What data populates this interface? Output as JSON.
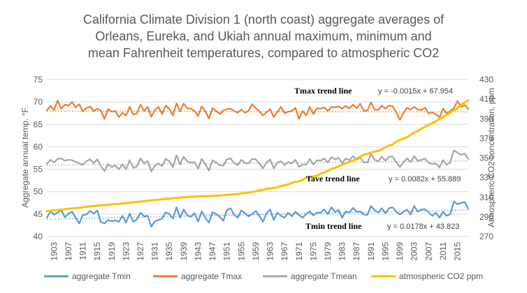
{
  "chart_data": {
    "type": "line",
    "title": [
      "California Climate Division 1 (north coast) aggregate averages of",
      "Orleans, Eureka, and Ukiah annual maximum, minimum and",
      "mean Fahrenheit temperatures, compared to atmospheric CO2"
    ],
    "ylabel": "Aggregate annual temp. °F.",
    "y2label": "Atmospheric CO2 concentration, ppm",
    "ylim": [
      40,
      75
    ],
    "y2lim": [
      270,
      430
    ],
    "xlim": [
      1901,
      2018
    ],
    "yticks": [
      "40",
      "45",
      "50",
      "55",
      "60",
      "65",
      "70",
      "75"
    ],
    "y2ticks": [
      "270",
      "290",
      "310",
      "330",
      "350",
      "370",
      "390",
      "410",
      "430"
    ],
    "xticks": [
      "1903",
      "1907",
      "1911",
      "1915",
      "1919",
      "1923",
      "1927",
      "1931",
      "1935",
      "1939",
      "1943",
      "1947",
      "1951",
      "1955",
      "1959",
      "1963",
      "1967",
      "1971",
      "1975",
      "1979",
      "1983",
      "1987",
      "1991",
      "1995",
      "1999",
      "2003",
      "2007",
      "2011",
      "2015"
    ],
    "x": [
      1901,
      1902,
      1903,
      1904,
      1905,
      1906,
      1907,
      1908,
      1909,
      1910,
      1911,
      1912,
      1913,
      1914,
      1915,
      1916,
      1917,
      1918,
      1919,
      1920,
      1921,
      1922,
      1923,
      1924,
      1925,
      1926,
      1927,
      1928,
      1929,
      1930,
      1931,
      1932,
      1933,
      1934,
      1935,
      1936,
      1937,
      1938,
      1939,
      1940,
      1941,
      1942,
      1943,
      1944,
      1945,
      1946,
      1947,
      1948,
      1949,
      1950,
      1951,
      1952,
      1953,
      1954,
      1955,
      1956,
      1957,
      1958,
      1959,
      1960,
      1961,
      1962,
      1963,
      1964,
      1965,
      1966,
      1967,
      1968,
      1969,
      1970,
      1971,
      1972,
      1973,
      1974,
      1975,
      1976,
      1977,
      1978,
      1979,
      1980,
      1981,
      1982,
      1983,
      1984,
      1985,
      1986,
      1987,
      1988,
      1989,
      1990,
      1991,
      1992,
      1993,
      1994,
      1995,
      1996,
      1997,
      1998,
      1999,
      2000,
      2001,
      2002,
      2003,
      2004,
      2005,
      2006,
      2007,
      2008,
      2009,
      2010,
      2011,
      2012,
      2013,
      2014,
      2015,
      2016,
      2017,
      2018
    ],
    "series": [
      {
        "name": "aggregate Tmin",
        "color": "#5B9BD5",
        "axis": "left",
        "values": [
          44.2,
          45.6,
          44.9,
          45.3,
          45.9,
          44.3,
          45.1,
          45.5,
          44.2,
          42.9,
          44.8,
          44.9,
          45.7,
          45.1,
          45.8,
          43.2,
          42.9,
          43.7,
          43.4,
          43.6,
          43.3,
          44.6,
          43.1,
          45.1,
          43.3,
          43.8,
          45.3,
          44.5,
          44.6,
          42.2,
          43.4,
          43.7,
          44.0,
          45.4,
          45.0,
          44.0,
          46.5,
          44.2,
          46.0,
          44.7,
          44.4,
          45.2,
          43.3,
          45.6,
          44.2,
          43.1,
          45.4,
          45.0,
          44.4,
          43.5,
          45.9,
          46.3,
          44.8,
          44.2,
          45.8,
          45.2,
          44.5,
          45.0,
          45.7,
          44.6,
          43.3,
          45.2,
          46.0,
          43.7,
          45.3,
          44.6,
          44.2,
          45.3,
          44.5,
          45.5,
          44.8,
          44.2,
          45.0,
          45.6,
          44.7,
          45.3,
          45.3,
          46.0,
          45.0,
          46.5,
          45.5,
          45.9,
          44.2,
          45.6,
          45.3,
          46.4,
          45.5,
          45.6,
          44.9,
          44.8,
          46.8,
          45.9,
          45.3,
          46.3,
          45.2,
          46.3,
          46.5,
          45.5,
          44.9,
          45.5,
          46.0,
          44.9,
          46.8,
          45.5,
          46.0,
          46.1,
          45.4,
          44.6,
          45.3,
          44.2,
          45.5,
          44.6,
          45.0,
          47.8,
          47.2,
          47.5,
          47.7,
          46.2
        ]
      },
      {
        "name": "aggregate Tmax",
        "color": "#ED7D31",
        "axis": "left",
        "values": [
          68.1,
          69.1,
          68.2,
          70.3,
          68.5,
          69.4,
          69.2,
          70.0,
          68.8,
          69.5,
          67.9,
          68.6,
          69.0,
          68.0,
          68.5,
          68.1,
          66.2,
          68.4,
          67.8,
          68.0,
          66.6,
          67.6,
          67.0,
          68.9,
          67.2,
          67.4,
          69.4,
          68.0,
          68.9,
          66.7,
          68.2,
          68.9,
          67.3,
          69.2,
          68.5,
          67.0,
          69.7,
          67.9,
          69.6,
          68.6,
          68.5,
          68.0,
          66.9,
          69.0,
          67.9,
          66.3,
          68.6,
          68.0,
          67.3,
          68.1,
          68.4,
          68.5,
          68.0,
          67.6,
          68.3,
          67.6,
          68.0,
          69.5,
          68.6,
          67.9,
          67.0,
          67.7,
          68.4,
          66.6,
          67.7,
          68.9,
          67.5,
          67.8,
          68.0,
          68.7,
          66.2,
          68.0,
          67.0,
          68.9,
          67.3,
          68.6,
          68.5,
          68.8,
          68.0,
          68.9,
          68.8,
          69.0,
          68.5,
          69.1,
          68.6,
          69.4,
          68.6,
          69.6,
          68.0,
          68.1,
          69.9,
          68.3,
          68.2,
          69.2,
          68.5,
          69.2,
          69.0,
          67.7,
          66.0,
          67.5,
          68.7,
          68.3,
          68.9,
          68.3,
          68.2,
          68.7,
          67.4,
          67.7,
          67.2,
          66.6,
          68.5,
          67.4,
          68.0,
          68.6,
          70.2,
          68.9,
          69.3,
          68.4
        ]
      },
      {
        "name": "aggregate Tmean",
        "color": "#A5A5A5",
        "axis": "left",
        "values": [
          56.2,
          57.1,
          56.5,
          57.3,
          57.4,
          56.9,
          57.1,
          57.0,
          56.6,
          56.3,
          56.0,
          56.8,
          57.2,
          56.3,
          57.2,
          55.7,
          54.6,
          56.1,
          55.5,
          55.8,
          55.0,
          56.1,
          55.0,
          57.0,
          55.3,
          55.6,
          57.4,
          56.3,
          56.8,
          54.5,
          55.8,
          56.3,
          55.7,
          57.3,
          56.8,
          55.5,
          58.1,
          56.1,
          57.8,
          56.7,
          56.5,
          56.6,
          55.1,
          57.3,
          56.1,
          54.7,
          57.0,
          56.5,
          55.9,
          55.8,
          57.2,
          57.4,
          56.4,
          55.9,
          57.1,
          56.4,
          56.3,
          57.3,
          57.2,
          56.3,
          55.2,
          56.5,
          57.2,
          55.2,
          56.5,
          56.8,
          55.9,
          56.6,
          56.3,
          57.1,
          55.5,
          56.1,
          56.0,
          57.3,
          56.0,
          57.0,
          56.9,
          57.4,
          56.5,
          57.7,
          57.2,
          57.5,
          56.4,
          57.4,
          57.0,
          57.9,
          57.1,
          57.6,
          56.5,
          56.5,
          58.4,
          57.1,
          56.8,
          57.8,
          56.9,
          57.8,
          57.8,
          56.6,
          55.5,
          56.5,
          57.4,
          56.6,
          57.9,
          56.9,
          57.1,
          57.4,
          56.4,
          56.2,
          56.3,
          55.4,
          57.0,
          56.0,
          56.5,
          59.2,
          58.7,
          58.2,
          58.5,
          57.3
        ]
      },
      {
        "name": "atmospheric CO2 ppm",
        "color": "#FFC000",
        "axis": "right",
        "values": [
          296.0,
          296.3,
          296.7,
          297.0,
          297.4,
          297.8,
          298.2,
          298.6,
          299.0,
          299.4,
          299.8,
          300.2,
          300.6,
          301.0,
          301.4,
          301.7,
          302.0,
          302.3,
          302.7,
          303.0,
          303.3,
          303.7,
          304.0,
          304.4,
          304.8,
          305.2,
          305.6,
          306.0,
          306.4,
          306.8,
          307.2,
          307.5,
          307.9,
          308.3,
          308.6,
          309.0,
          309.3,
          309.6,
          310.0,
          310.3,
          310.5,
          310.7,
          310.9,
          311.0,
          311.1,
          311.2,
          311.4,
          311.6,
          311.8,
          312.0,
          312.3,
          312.6,
          313.0,
          313.4,
          313.8,
          314.3,
          314.8,
          315.3,
          316.0,
          316.9,
          317.6,
          318.4,
          319.0,
          319.6,
          320.0,
          321.4,
          322.2,
          323.0,
          324.6,
          325.7,
          326.3,
          327.5,
          329.7,
          330.2,
          331.1,
          332.0,
          333.8,
          335.4,
          336.8,
          338.7,
          340.1,
          341.5,
          343.1,
          344.6,
          346.0,
          347.4,
          349.2,
          351.6,
          353.1,
          354.4,
          355.6,
          356.5,
          357.1,
          358.9,
          360.9,
          362.7,
          363.8,
          366.7,
          368.4,
          369.7,
          371.3,
          373.5,
          375.8,
          377.6,
          379.8,
          381.9,
          383.8,
          385.6,
          387.4,
          389.9,
          391.7,
          393.9,
          396.5,
          398.6,
          400.8,
          404.2,
          406.5,
          408.7
        ]
      }
    ],
    "trendlines": [
      {
        "series": "aggregate Tmax",
        "label": "Tmax trend line",
        "equation": "y = -0.0015x + 67.954",
        "slope": -0.0015,
        "intercept": 67.954
      },
      {
        "series": "aggregate Tmean",
        "label": "Tave trend line",
        "equation": "y = 0.0082x + 55.889",
        "slope": 0.0082,
        "intercept": 55.889
      },
      {
        "series": "aggregate Tmin",
        "label": "Tmin trend line",
        "equation": "y = 0.0178x + 43.823",
        "slope": 0.0178,
        "intercept": 43.823
      }
    ],
    "grid": true,
    "legend": "bottom"
  }
}
